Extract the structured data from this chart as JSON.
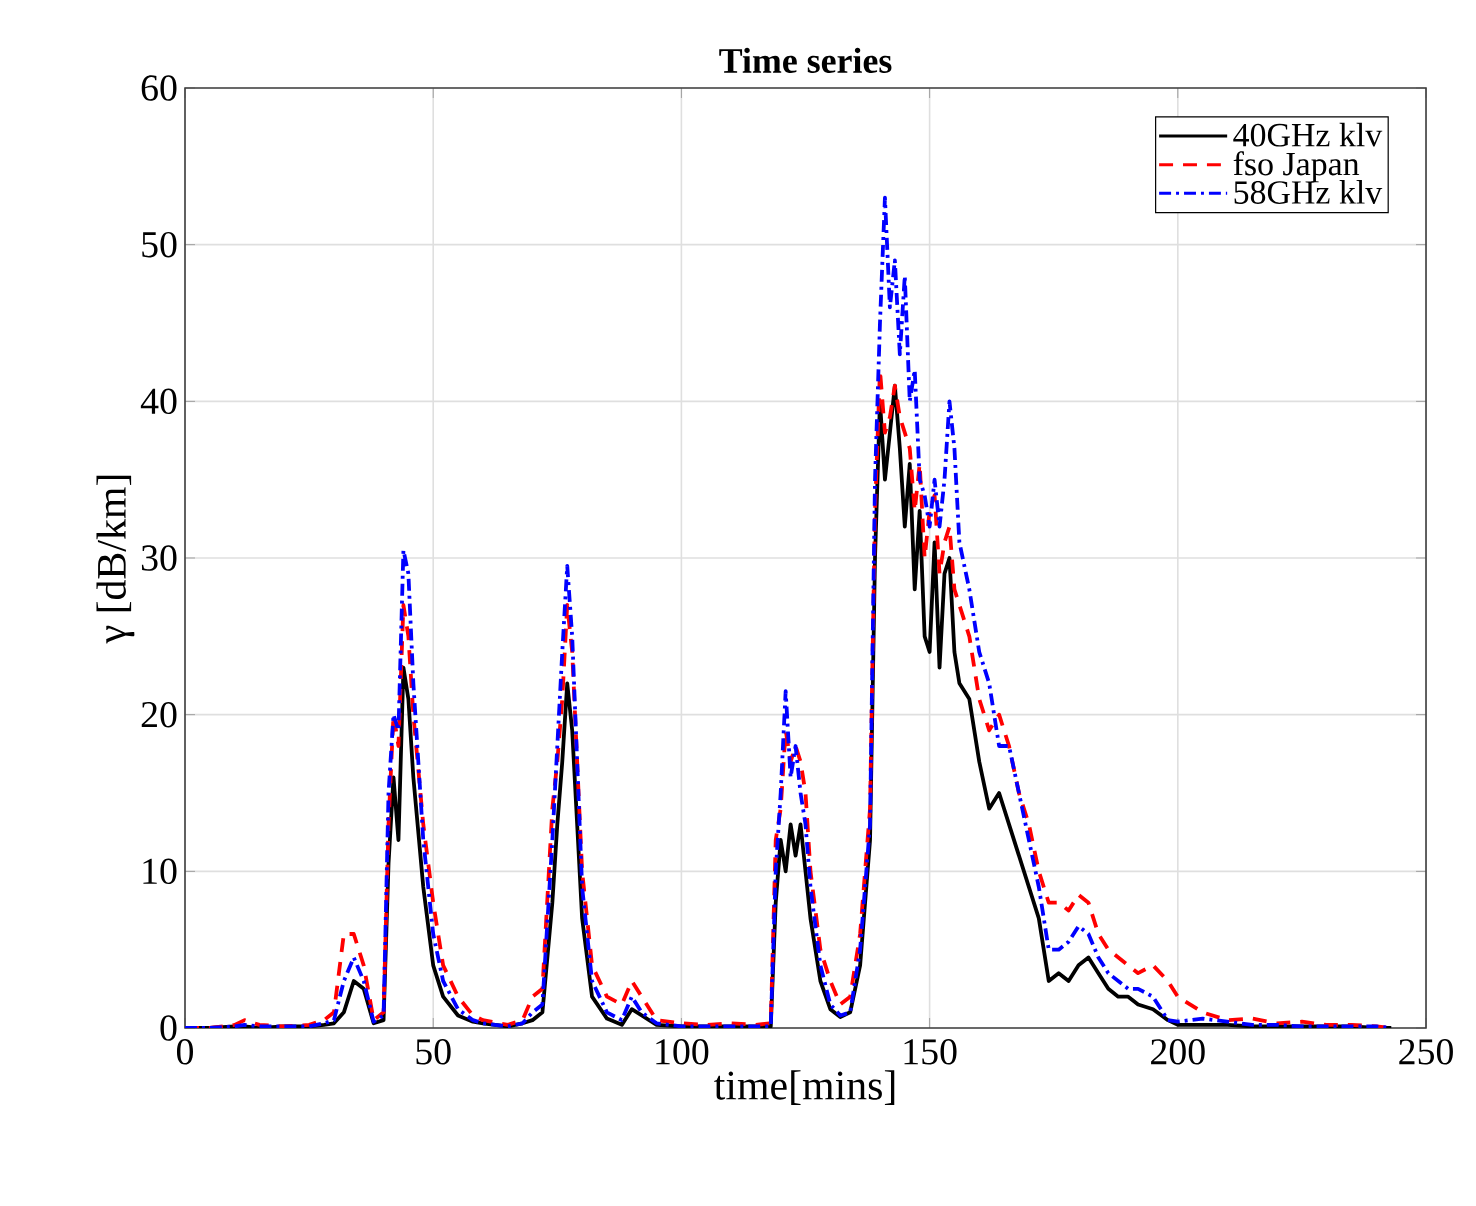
{
  "chart_data": {
    "type": "line",
    "title": "Time series",
    "xlabel": "time[mins]",
    "ylabel": "γ [dB/km]",
    "xlim": [
      0,
      250
    ],
    "ylim": [
      0,
      60
    ],
    "xticks": [
      0,
      50,
      100,
      150,
      200,
      250
    ],
    "yticks": [
      0,
      10,
      20,
      30,
      40,
      50,
      60
    ],
    "grid": true,
    "legend": "top right",
    "marker": "none",
    "x": [
      0,
      5,
      10,
      12,
      15,
      20,
      25,
      28,
      30,
      32,
      34,
      36,
      38,
      40,
      41,
      42,
      43,
      44,
      45,
      46,
      48,
      50,
      52,
      55,
      58,
      60,
      65,
      68,
      70,
      72,
      74,
      75,
      76,
      77,
      78,
      80,
      82,
      85,
      88,
      90,
      92,
      95,
      100,
      105,
      110,
      115,
      118,
      119,
      120,
      121,
      122,
      123,
      124,
      125,
      126,
      128,
      130,
      132,
      134,
      136,
      138,
      139,
      140,
      141,
      142,
      143,
      144,
      145,
      146,
      147,
      148,
      149,
      150,
      151,
      152,
      153,
      154,
      155,
      156,
      158,
      160,
      162,
      164,
      166,
      168,
      170,
      172,
      174,
      176,
      178,
      180,
      182,
      184,
      186,
      188,
      190,
      192,
      195,
      198,
      200,
      205,
      210,
      215,
      220,
      225,
      230,
      235,
      240,
      243
    ],
    "series": [
      {
        "name": "40GHz klv",
        "color": "#000000",
        "line_style": "solid",
        "values": [
          0,
          0,
          0.1,
          0.1,
          0,
          0.1,
          0.1,
          0.2,
          0.3,
          1,
          3,
          2.5,
          0.3,
          0.5,
          10.5,
          16,
          12,
          23,
          21,
          16,
          9,
          4,
          2,
          0.8,
          0.4,
          0.3,
          0.1,
          0.3,
          0.5,
          1,
          8,
          13,
          17,
          22,
          19,
          7,
          2,
          0.6,
          0.2,
          1.2,
          0.8,
          0.2,
          0.1,
          0.1,
          0.1,
          0.1,
          0.1,
          8,
          12,
          10,
          13,
          11,
          13,
          10,
          7,
          3,
          1.2,
          0.7,
          1,
          4,
          12,
          30,
          40,
          35,
          38,
          41,
          37,
          32,
          36,
          28,
          33,
          25,
          24,
          31,
          23,
          29,
          30,
          24,
          22,
          21,
          17,
          14,
          15,
          13,
          11,
          9,
          7,
          3,
          3.5,
          3,
          4,
          4.5,
          3.5,
          2.5,
          2,
          2,
          1.5,
          1.2,
          0.5,
          0.2,
          0.2,
          0.2,
          0.1,
          0.1,
          0.1,
          0.1,
          0.1,
          0,
          0
        ]
      },
      {
        "name": "fso Japan",
        "color": "#ff0000",
        "line_style": "dashed",
        "values": [
          0,
          0,
          0.2,
          0.5,
          0.2,
          0.1,
          0.2,
          0.5,
          1,
          6,
          6,
          4,
          0.5,
          1,
          13,
          20,
          18,
          27,
          25,
          20,
          13,
          8,
          4,
          2,
          0.8,
          0.5,
          0.2,
          0.5,
          2,
          2.5,
          14,
          17,
          21,
          27,
          24,
          10,
          4,
          2,
          1.5,
          3,
          2,
          0.5,
          0.3,
          0.2,
          0.3,
          0.2,
          0.3,
          12,
          14,
          19,
          17,
          18,
          17,
          15,
          10,
          5,
          3,
          1.5,
          2,
          6,
          14,
          33,
          42,
          38,
          39,
          41,
          39,
          38,
          37,
          33,
          36,
          30,
          33,
          34,
          29,
          31,
          32,
          28,
          27,
          25,
          21,
          19,
          20,
          18,
          15,
          13,
          10,
          8,
          8,
          7.5,
          8.5,
          8,
          6,
          5,
          4.5,
          4,
          3.5,
          4,
          3,
          2,
          1,
          0.5,
          0.6,
          0.3,
          0.4,
          0.2,
          0.2,
          0.1,
          0
        ]
      },
      {
        "name": "58GHz klv",
        "color": "#0000ff",
        "line_style": "dashdot",
        "values": [
          0,
          0,
          0.1,
          0.2,
          0.1,
          0.1,
          0.1,
          0.3,
          0.5,
          3,
          4.5,
          3,
          0.4,
          0.8,
          15,
          20,
          19,
          30.5,
          29,
          22,
          12,
          6,
          3,
          1.2,
          0.5,
          0.3,
          0.1,
          0.3,
          1,
          1.5,
          12,
          18,
          24,
          29.5,
          25,
          9,
          3,
          1,
          0.5,
          2,
          1,
          0.3,
          0.1,
          0.1,
          0.1,
          0.1,
          0.1,
          10,
          15,
          21.5,
          16,
          18,
          15,
          13,
          9,
          4,
          1.5,
          0.8,
          1,
          5,
          13,
          35,
          45,
          53,
          46,
          49,
          43,
          48,
          40,
          42,
          35,
          34,
          32,
          35,
          32,
          35,
          40,
          37,
          31,
          28,
          24,
          22,
          18,
          18,
          15,
          12,
          9,
          5,
          5,
          5.5,
          6.5,
          6,
          4.5,
          3.5,
          3,
          2.5,
          2.5,
          2,
          0.5,
          0.4,
          0.6,
          0.4,
          0.2,
          0.2,
          0.1,
          0.1,
          0.1,
          0.1,
          0
        ]
      }
    ]
  }
}
